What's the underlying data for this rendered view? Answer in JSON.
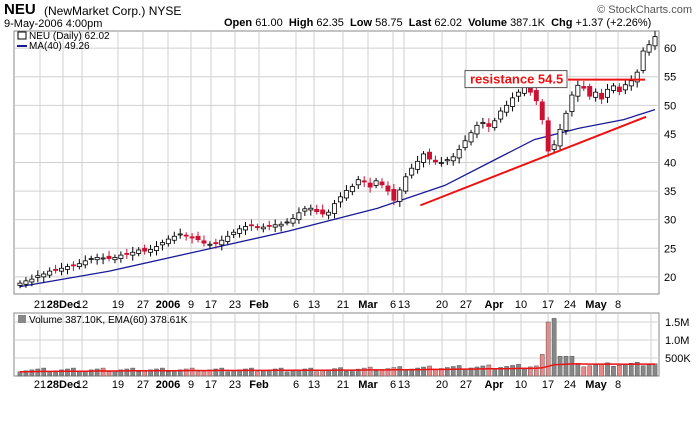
{
  "header": {
    "symbol": "NEU",
    "company": "(NewMarket Corp.)",
    "exchange": "NYSE",
    "date": "9-May-2006 4:00pm",
    "copyright": "© StockCharts.com",
    "quote": {
      "open_label": "Open",
      "open": "61.00",
      "high_label": "High",
      "high": "62.35",
      "low_label": "Low",
      "low": "58.75",
      "last_label": "Last",
      "last": "62.02",
      "volume_label": "Volume",
      "volume": "387.1K",
      "chg_label": "Chg",
      "chg": "+1.37 (+2.26%)"
    }
  },
  "legend": {
    "price": "NEU (Daily) 62.02",
    "ma": "MA(40) 49.26",
    "volume": "Volume 387.10K, EMA(60) 378.61K"
  },
  "annotation": {
    "text": "resistance 54.5",
    "value": 54.5
  },
  "colors": {
    "up": "#000000",
    "down": "#cc1133",
    "ma": "#1a1a99",
    "trend": "#ee1111",
    "grid": "#d0d0d0",
    "vol_up": "#888888",
    "vol_down": "#ee8888"
  },
  "chart_data": [
    {
      "type": "candlestick",
      "title": "NEU (NewMarket Corp.) NYSE",
      "ylim": [
        17,
        63
      ],
      "y_ticks": [
        20,
        25,
        30,
        35,
        40,
        45,
        50,
        55,
        60
      ],
      "x_tick_labels": [
        "21",
        "28Dec",
        "12",
        "19",
        "27",
        "2006",
        "9",
        "17",
        "23",
        "Feb",
        "6",
        "13",
        "21",
        "Mar",
        "6",
        "13",
        "20",
        "27",
        "Apr",
        "10",
        "17",
        "24",
        "May",
        "8"
      ],
      "close_estimates": [
        18.9,
        19.3,
        19.6,
        20.2,
        20.5,
        21.0,
        21.2,
        21.5,
        21.8,
        22.0,
        22.3,
        22.8,
        23.2,
        23.4,
        23.3,
        23.2,
        23.4,
        23.8,
        24.0,
        24.3,
        24.7,
        24.5,
        24.8,
        25.3,
        26.0,
        26.6,
        27.1,
        27.5,
        27.2,
        26.8,
        26.5,
        25.9,
        25.7,
        25.8,
        26.4,
        27.1,
        27.8,
        28.4,
        28.8,
        29.0,
        28.6,
        28.7,
        28.9,
        29.1,
        29.2,
        29.6,
        30.2,
        31.2,
        31.9,
        32.0,
        31.4,
        31.0,
        31.3,
        32.8,
        34.0,
        35.1,
        35.8,
        37.0,
        36.6,
        35.7,
        36.8,
        36.1,
        35.0,
        33.4,
        35.2,
        37.5,
        39.0,
        40.2,
        41.5,
        40.6,
        40.1,
        40.0,
        40.5,
        41.0,
        42.3,
        43.8,
        45.2,
        46.5,
        47.0,
        46.3,
        47.3,
        49.0,
        50.0,
        51.3,
        52.3,
        53.3,
        52.3,
        50.8,
        47.5,
        42.0,
        43.1,
        45.8,
        48.6,
        51.8,
        53.5,
        53.0,
        51.6,
        52.3,
        51.1,
        52.8,
        53.4,
        52.4,
        53.6,
        54.3,
        55.8,
        59.5,
        60.6,
        62.02
      ],
      "ma40_points": [
        [
          0,
          18.3
        ],
        [
          20,
          21.0
        ],
        [
          40,
          24.5
        ],
        [
          60,
          28.0
        ],
        [
          80,
          32.0
        ],
        [
          95,
          36.0
        ],
        [
          105,
          40.0
        ],
        [
          115,
          44.0
        ],
        [
          125,
          46.0
        ],
        [
          135,
          47.5
        ],
        [
          142,
          49.26
        ]
      ],
      "trendlines": [
        {
          "from": [
            0.63,
            32.5
          ],
          "to": [
            0.98,
            48.0
          ]
        }
      ],
      "resistance": 54.5
    },
    {
      "type": "bar",
      "title": "Volume",
      "y_ticks_labels": [
        "500K",
        "1.0M",
        "1.5M"
      ],
      "y_ticks": [
        500,
        1000,
        1500
      ],
      "ylim": [
        0,
        1750
      ],
      "unit": "K shares"
    }
  ]
}
